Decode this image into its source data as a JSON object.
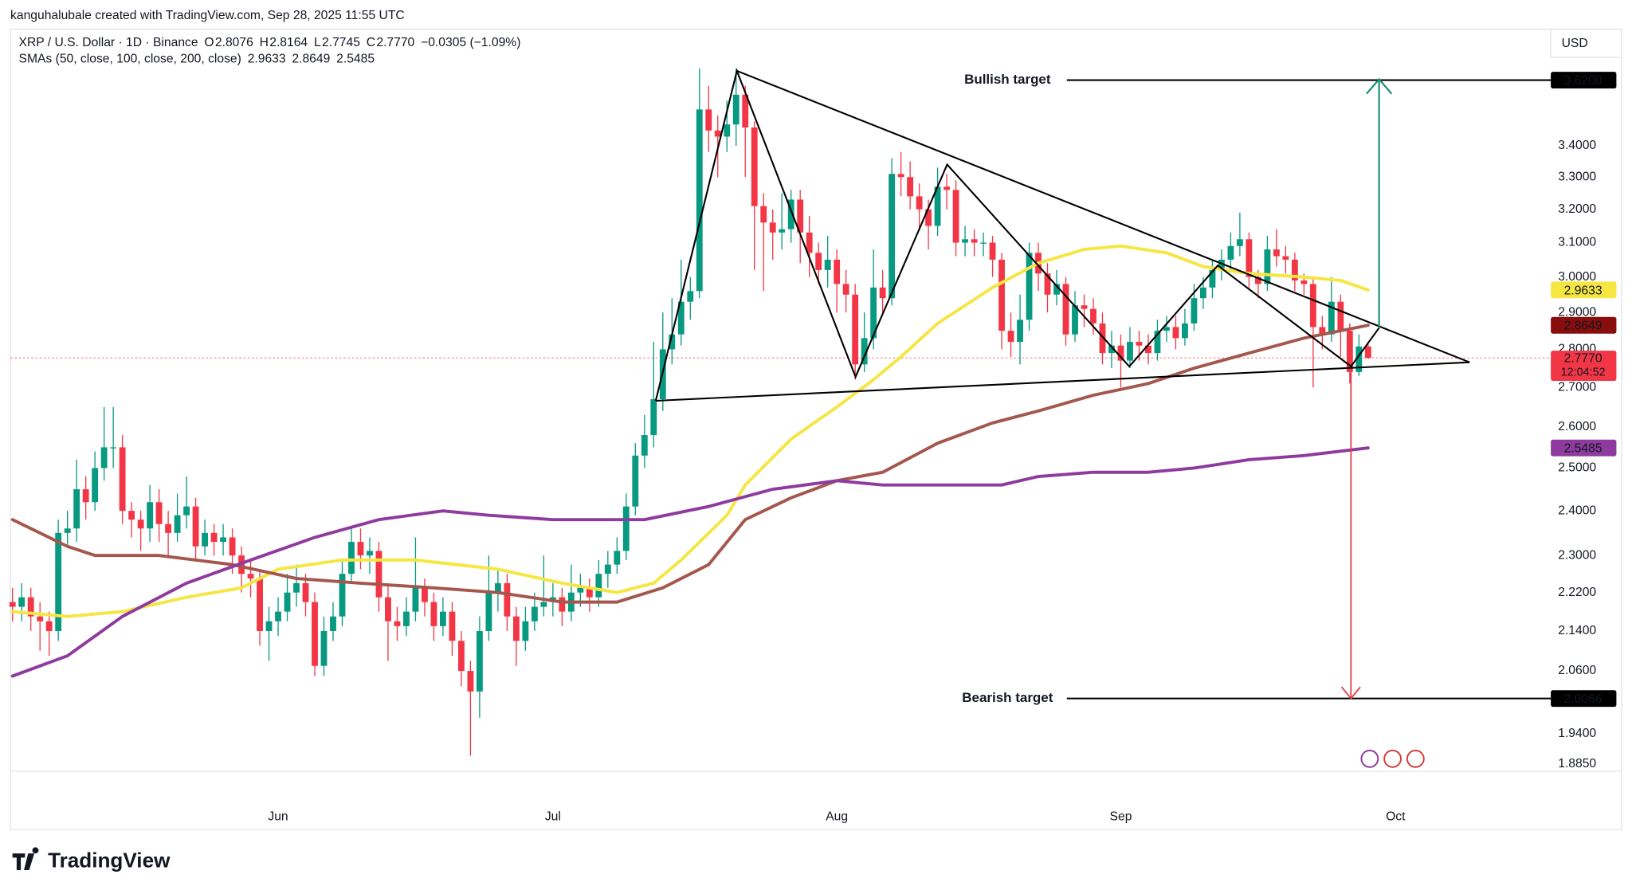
{
  "chart_data": {
    "type": "candlestick",
    "attribution": "kanguhalubale created with TradingView.com, Sep 28, 2025 11:55 UTC",
    "symbol": "XRP / U.S. Dollar · 1D · Binance",
    "ohlc_legend": [
      {
        "key": "O",
        "value": "2.8076"
      },
      {
        "key": "H",
        "value": "2.8164"
      },
      {
        "key": "L",
        "value": "2.7745"
      },
      {
        "key": "C",
        "value": "2.7770"
      }
    ],
    "change": "−0.0305 (−1.09%)",
    "currency": "USD",
    "brand": "TradingView",
    "up_color": "#089981",
    "down_color": "#f23645",
    "log_scale": true,
    "grid": false,
    "xlim": [
      -0.23,
      167.95
    ],
    "xticks": [
      {
        "value": 29,
        "label": "Jun"
      },
      {
        "value": 59,
        "label": "Jul"
      },
      {
        "value": 90,
        "label": "Aug"
      },
      {
        "value": 121,
        "label": "Sep"
      },
      {
        "value": 151,
        "label": "Oct"
      }
    ],
    "ylim": [
      1.872,
      3.8
    ],
    "yticks": [
      {
        "value": 3.4,
        "label": "3.4000"
      },
      {
        "value": 3.3,
        "label": "3.3000"
      },
      {
        "value": 3.2,
        "label": "3.2000"
      },
      {
        "value": 3.1,
        "label": "3.1000"
      },
      {
        "value": 3.0,
        "label": "3.0000"
      },
      {
        "value": 2.9,
        "label": "2.9000"
      },
      {
        "value": 2.8,
        "label": "2.8000"
      },
      {
        "value": 2.7,
        "label": "2.7000"
      },
      {
        "value": 2.6,
        "label": "2.6000"
      },
      {
        "value": 2.5,
        "label": "2.5000"
      },
      {
        "value": 2.4,
        "label": "2.4000"
      },
      {
        "value": 2.3,
        "label": "2.3000"
      },
      {
        "value": 2.22,
        "label": "2.2200"
      },
      {
        "value": 2.14,
        "label": "2.1400"
      },
      {
        "value": 2.06,
        "label": "2.0600"
      },
      {
        "value": 1.94,
        "label": "1.9400"
      },
      {
        "value": 1.885,
        "label": "1.8850"
      }
    ],
    "x": [
      0,
      1,
      2,
      3,
      4,
      5,
      6,
      7,
      8,
      9,
      10,
      11,
      12,
      13,
      14,
      15,
      16,
      17,
      18,
      19,
      20,
      21,
      22,
      23,
      24,
      25,
      26,
      27,
      28,
      29,
      30,
      31,
      32,
      33,
      34,
      35,
      36,
      37,
      38,
      39,
      40,
      41,
      42,
      43,
      44,
      45,
      46,
      47,
      48,
      49,
      50,
      51,
      52,
      53,
      54,
      55,
      56,
      57,
      58,
      59,
      60,
      61,
      62,
      63,
      64,
      65,
      66,
      67,
      68,
      69,
      70,
      71,
      72,
      73,
      74,
      75,
      76,
      77,
      78,
      79,
      80,
      81,
      82,
      83,
      84,
      85,
      86,
      87,
      88,
      89,
      90,
      91,
      92,
      93,
      94,
      95,
      96,
      97,
      98,
      99,
      100,
      101,
      102,
      103,
      104,
      105,
      106,
      107,
      108,
      109,
      110,
      111,
      112,
      113,
      114,
      115,
      116,
      117,
      118,
      119,
      120,
      121,
      122,
      123,
      124,
      125,
      126,
      127,
      128,
      129,
      130,
      131,
      132,
      133,
      134,
      135,
      136,
      137,
      138,
      139,
      140,
      141,
      142,
      143,
      144,
      145,
      146,
      147,
      148
    ],
    "open": [
      2.2,
      2.19,
      2.21,
      2.17,
      2.16,
      2.14,
      2.35,
      2.36,
      2.45,
      2.42,
      2.5,
      2.55,
      2.55,
      2.4,
      2.38,
      2.36,
      2.42,
      2.37,
      2.35,
      2.39,
      2.41,
      2.32,
      2.35,
      2.33,
      2.34,
      2.3,
      2.26,
      2.25,
      2.14,
      2.16,
      2.18,
      2.22,
      2.24,
      2.2,
      2.07,
      2.14,
      2.17,
      2.26,
      2.33,
      2.3,
      2.31,
      2.21,
      2.16,
      2.15,
      2.18,
      2.23,
      2.2,
      2.15,
      2.18,
      2.12,
      2.06,
      2.02,
      2.14,
      2.22,
      2.24,
      2.17,
      2.12,
      2.16,
      2.19,
      2.2,
      2.21,
      2.18,
      2.22,
      2.23,
      2.21,
      2.26,
      2.28,
      2.31,
      2.41,
      2.53,
      2.58,
      2.67,
      2.8,
      2.84,
      2.93,
      2.96,
      3.52,
      3.45,
      3.43,
      3.47,
      3.57,
      3.46,
      3.21,
      3.16,
      3.13,
      3.14,
      3.23,
      3.13,
      3.07,
      3.02,
      3.05,
      2.98,
      2.95,
      2.76,
      2.83,
      2.97,
      2.94,
      3.31,
      3.3,
      3.24,
      3.2,
      3.15,
      3.27,
      3.26,
      3.1,
      3.11,
      3.1,
      3.1,
      3.05,
      2.85,
      2.82,
      2.88,
      3.07,
      3.01,
      2.95,
      2.98,
      2.84,
      2.92,
      2.91,
      2.87,
      2.79,
      2.81,
      2.77,
      2.82,
      2.81,
      2.79,
      2.85,
      2.86,
      2.83,
      2.87,
      2.94,
      2.97,
      3.02,
      3.05,
      3.09,
      3.11,
      3.0,
      2.98,
      3.08,
      3.06,
      3.05,
      2.99,
      2.98,
      2.86,
      2.84,
      2.93,
      2.85,
      2.74,
      2.8076
    ],
    "high": [
      2.23,
      2.24,
      2.23,
      2.2,
      2.18,
      2.38,
      2.4,
      2.52,
      2.48,
      2.54,
      2.65,
      2.65,
      2.58,
      2.42,
      2.4,
      2.46,
      2.45,
      2.4,
      2.44,
      2.48,
      2.43,
      2.38,
      2.37,
      2.37,
      2.36,
      2.32,
      2.29,
      2.27,
      2.19,
      2.21,
      2.26,
      2.28,
      2.26,
      2.22,
      2.17,
      2.2,
      2.29,
      2.36,
      2.36,
      2.34,
      2.33,
      2.24,
      2.19,
      2.21,
      2.34,
      2.25,
      2.22,
      2.21,
      2.2,
      2.14,
      2.08,
      2.17,
      2.3,
      2.27,
      2.26,
      2.19,
      2.19,
      2.22,
      2.3,
      2.24,
      2.23,
      2.28,
      2.26,
      2.25,
      2.29,
      2.31,
      2.34,
      2.44,
      2.56,
      2.63,
      2.82,
      2.9,
      2.94,
      3.05,
      3.0,
      3.66,
      3.6,
      3.5,
      3.55,
      3.66,
      3.6,
      3.48,
      3.25,
      3.2,
      3.25,
      3.26,
      3.26,
      3.18,
      3.1,
      3.12,
      3.08,
      3.02,
      2.98,
      2.9,
      3.08,
      3.02,
      3.36,
      3.38,
      3.35,
      3.28,
      3.23,
      3.33,
      3.31,
      3.29,
      3.15,
      3.14,
      3.13,
      3.12,
      3.07,
      2.9,
      2.95,
      3.1,
      3.1,
      3.04,
      3.02,
      3.0,
      2.96,
      2.95,
      2.94,
      2.9,
      2.85,
      2.84,
      2.86,
      2.85,
      2.84,
      2.88,
      2.89,
      2.89,
      2.91,
      2.98,
      3.0,
      3.05,
      3.08,
      3.13,
      3.19,
      3.13,
      3.02,
      3.12,
      3.14,
      3.09,
      3.07,
      3.01,
      3.0,
      2.89,
      3.0,
      2.95,
      2.87,
      2.84,
      2.8164
    ],
    "low": [
      2.16,
      2.16,
      2.14,
      2.1,
      2.09,
      2.12,
      2.32,
      2.33,
      2.38,
      2.4,
      2.47,
      2.5,
      2.37,
      2.34,
      2.31,
      2.33,
      2.33,
      2.3,
      2.33,
      2.36,
      2.29,
      2.3,
      2.3,
      2.3,
      2.26,
      2.22,
      2.21,
      2.11,
      2.08,
      2.13,
      2.16,
      2.19,
      2.17,
      2.05,
      2.05,
      2.12,
      2.15,
      2.24,
      2.27,
      2.26,
      2.18,
      2.08,
      2.12,
      2.13,
      2.16,
      2.17,
      2.12,
      2.13,
      2.09,
      2.03,
      1.9,
      1.97,
      2.12,
      2.18,
      2.14,
      2.07,
      2.1,
      2.14,
      2.17,
      2.17,
      2.15,
      2.16,
      2.19,
      2.18,
      2.19,
      2.23,
      2.26,
      2.29,
      2.39,
      2.5,
      2.55,
      2.64,
      2.76,
      2.81,
      2.88,
      2.94,
      3.38,
      3.3,
      3.38,
      3.4,
      3.3,
      3.02,
      2.96,
      3.05,
      3.08,
      3.1,
      3.04,
      3.0,
      2.98,
      2.97,
      2.9,
      2.9,
      2.72,
      2.74,
      2.8,
      2.9,
      2.92,
      3.24,
      3.2,
      3.14,
      3.08,
      3.12,
      3.2,
      3.06,
      3.06,
      3.06,
      3.06,
      3.0,
      2.8,
      2.78,
      2.76,
      2.85,
      2.96,
      2.9,
      2.92,
      2.81,
      2.82,
      2.86,
      2.84,
      2.76,
      2.75,
      2.7,
      2.75,
      2.77,
      2.76,
      2.77,
      2.82,
      2.8,
      2.81,
      2.85,
      2.91,
      2.94,
      2.99,
      3.02,
      3.06,
      2.97,
      2.94,
      2.96,
      3.03,
      3.01,
      2.96,
      2.95,
      2.7,
      2.8,
      2.82,
      2.78,
      2.71,
      2.73,
      2.7745
    ],
    "close": [
      2.19,
      2.21,
      2.17,
      2.16,
      2.14,
      2.35,
      2.36,
      2.45,
      2.42,
      2.5,
      2.55,
      2.55,
      2.4,
      2.38,
      2.36,
      2.42,
      2.37,
      2.35,
      2.39,
      2.41,
      2.32,
      2.35,
      2.33,
      2.34,
      2.3,
      2.26,
      2.25,
      2.14,
      2.16,
      2.18,
      2.22,
      2.24,
      2.2,
      2.07,
      2.14,
      2.17,
      2.26,
      2.33,
      2.3,
      2.31,
      2.21,
      2.16,
      2.15,
      2.18,
      2.23,
      2.2,
      2.15,
      2.18,
      2.12,
      2.06,
      2.02,
      2.14,
      2.22,
      2.24,
      2.17,
      2.12,
      2.16,
      2.19,
      2.2,
      2.21,
      2.18,
      2.22,
      2.23,
      2.21,
      2.26,
      2.28,
      2.31,
      2.41,
      2.53,
      2.58,
      2.67,
      2.8,
      2.84,
      2.93,
      2.96,
      3.52,
      3.45,
      3.43,
      3.47,
      3.57,
      3.46,
      3.21,
      3.16,
      3.13,
      3.14,
      3.23,
      3.13,
      3.07,
      3.02,
      3.05,
      2.98,
      2.95,
      2.76,
      2.83,
      2.97,
      2.94,
      3.31,
      3.3,
      3.24,
      3.2,
      3.15,
      3.27,
      3.26,
      3.1,
      3.11,
      3.1,
      3.1,
      3.05,
      2.85,
      2.82,
      2.88,
      3.07,
      3.01,
      2.95,
      2.98,
      2.84,
      2.92,
      2.91,
      2.87,
      2.79,
      2.81,
      2.77,
      2.82,
      2.81,
      2.79,
      2.85,
      2.86,
      2.83,
      2.87,
      2.94,
      2.97,
      3.02,
      3.05,
      3.09,
      3.11,
      3.0,
      2.98,
      3.08,
      3.06,
      3.05,
      2.99,
      2.98,
      2.86,
      2.84,
      2.93,
      2.85,
      2.74,
      2.8076,
      2.777
    ],
    "last_price_label": "2.7770",
    "countdown": "12:04:52",
    "indicator_label": "SMAs (50, close, 100, close, 200, close)",
    "series": [
      {
        "color": "#f5e642",
        "label_color": "#1e1e1e",
        "x": [
          0,
          6,
          12,
          19,
          25,
          29,
          36,
          44,
          53,
          60,
          66,
          70,
          73,
          78,
          80,
          85,
          90,
          94,
          97,
          101,
          107,
          112,
          117,
          121,
          126,
          130,
          135,
          141,
          145,
          148
        ],
        "values": [
          2.18,
          2.17,
          2.18,
          2.21,
          2.23,
          2.27,
          2.29,
          2.29,
          2.27,
          2.24,
          2.22,
          2.24,
          2.29,
          2.39,
          2.46,
          2.57,
          2.65,
          2.72,
          2.78,
          2.87,
          2.97,
          3.04,
          3.08,
          3.09,
          3.07,
          3.03,
          3.01,
          3.0,
          2.99,
          2.9633
        ]
      },
      {
        "color": "#a4574d",
        "box_color": "#880e0e",
        "label_color": "#ffffff",
        "x": [
          0,
          6,
          9,
          16,
          24,
          31,
          38,
          46,
          53,
          60,
          66,
          71,
          76,
          80,
          85,
          90,
          95,
          101,
          107,
          112,
          118,
          124,
          129,
          135,
          141,
          145,
          148
        ],
        "values": [
          2.38,
          2.32,
          2.3,
          2.3,
          2.28,
          2.25,
          2.24,
          2.23,
          2.22,
          2.2,
          2.2,
          2.23,
          2.28,
          2.38,
          2.43,
          2.47,
          2.49,
          2.56,
          2.61,
          2.64,
          2.68,
          2.71,
          2.75,
          2.79,
          2.83,
          2.85,
          2.8649
        ]
      },
      {
        "color": "#8e3a9e",
        "label_color": "#ffffff",
        "x": [
          0,
          6,
          12,
          19,
          26,
          33,
          40,
          47,
          52,
          59,
          65,
          69,
          76,
          83,
          90,
          95,
          101,
          108,
          112,
          118,
          124,
          129,
          135,
          141,
          148
        ],
        "values": [
          2.05,
          2.09,
          2.17,
          2.24,
          2.29,
          2.34,
          2.38,
          2.4,
          2.39,
          2.38,
          2.38,
          2.38,
          2.41,
          2.45,
          2.47,
          2.46,
          2.46,
          2.46,
          2.48,
          2.49,
          2.49,
          2.5,
          2.52,
          2.53,
          2.5485
        ]
      }
    ],
    "price_lines": [
      {
        "name": "Bullish target",
        "value": 3.62,
        "label": "3.6200"
      },
      {
        "name": "Bearish target",
        "value": 2.0066,
        "label": "2.0066"
      }
    ]
  }
}
